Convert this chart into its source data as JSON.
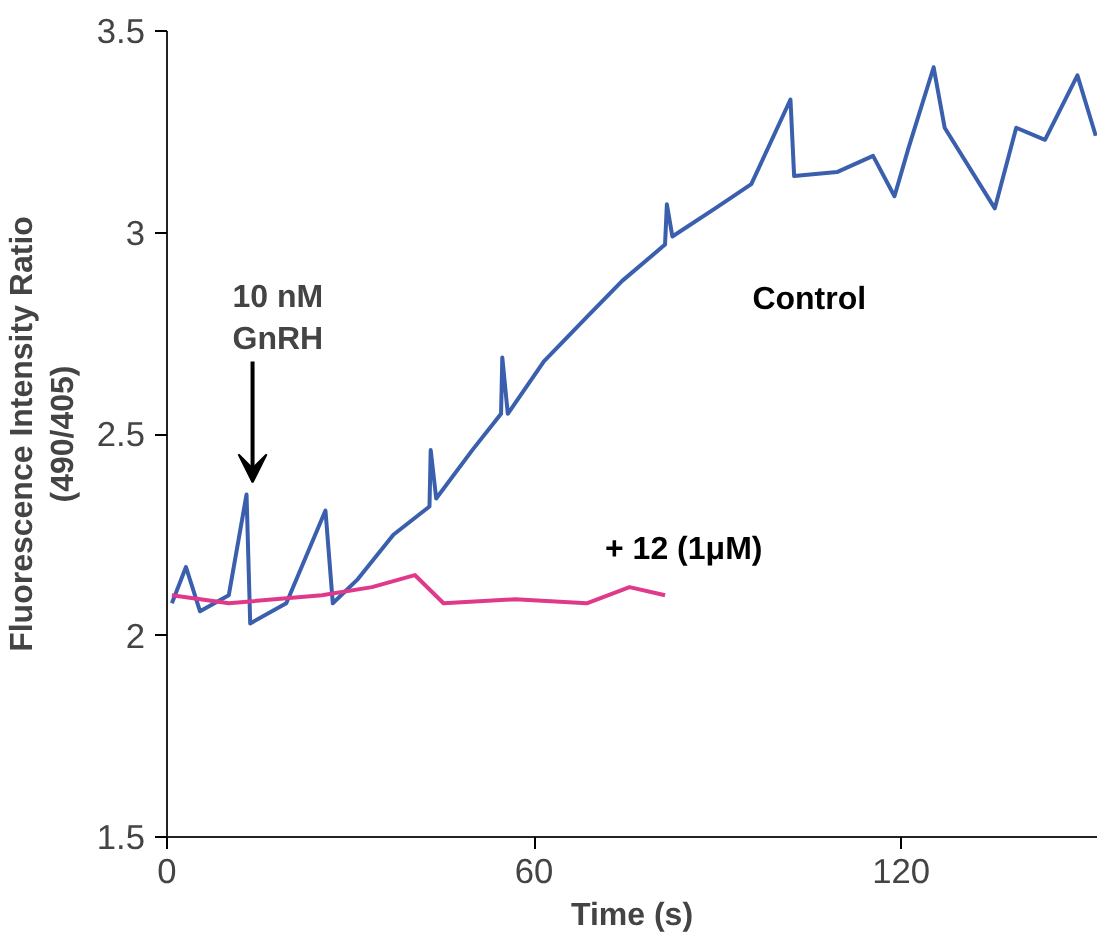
{
  "chart_data": {
    "type": "line",
    "xlabel": "Time (s)",
    "ylabel": "Fluorescence Intensity Ratio\n(490/405)",
    "xlim": [
      0,
      152
    ],
    "ylim": [
      1.5,
      3.5
    ],
    "xticks": [
      0,
      60,
      120
    ],
    "yticks": [
      1.5,
      2,
      2.5,
      3,
      3.5
    ],
    "grid": false,
    "legend": false,
    "marker": "none",
    "line_style": "solid",
    "annotations": [
      "10 nM\nGnRH"
    ],
    "series": [
      {
        "name": "Control",
        "color": "#3a5fad",
        "x": [
          0.8,
          3.1,
          5.4,
          10.1,
          13.0,
          13.6,
          19.5,
          25.9,
          27.1,
          31.2,
          37.0,
          42.9,
          43.1,
          44.0,
          49.9,
          54.6,
          54.8,
          55.7,
          61.6,
          68.6,
          74.4,
          81.4,
          81.7,
          82.6,
          89.6,
          95.5,
          101.9,
          102.5,
          109.5,
          115.4,
          118.9,
          121.2,
          125.3,
          127.1,
          135.3,
          138.8,
          143.5,
          148.8,
          151.8
        ],
        "values": [
          2.08,
          2.17,
          2.06,
          2.1,
          2.35,
          2.03,
          2.08,
          2.31,
          2.08,
          2.14,
          2.25,
          2.32,
          2.46,
          2.34,
          2.46,
          2.55,
          2.69,
          2.55,
          2.68,
          2.79,
          2.88,
          2.97,
          3.07,
          2.99,
          3.06,
          3.12,
          3.33,
          3.14,
          3.15,
          3.19,
          3.09,
          3.21,
          3.41,
          3.26,
          3.06,
          3.26,
          3.23,
          3.39,
          3.24
        ]
      },
      {
        "name": "+ 12 (1μM)",
        "color": "#e0388a",
        "x": [
          0.8,
          10.1,
          25.3,
          33.5,
          40.5,
          45.2,
          56.9,
          68.6,
          75.6,
          81.4
        ],
        "values": [
          2.1,
          2.08,
          2.1,
          2.12,
          2.15,
          2.08,
          2.09,
          2.08,
          2.12,
          2.1
        ]
      }
    ]
  }
}
